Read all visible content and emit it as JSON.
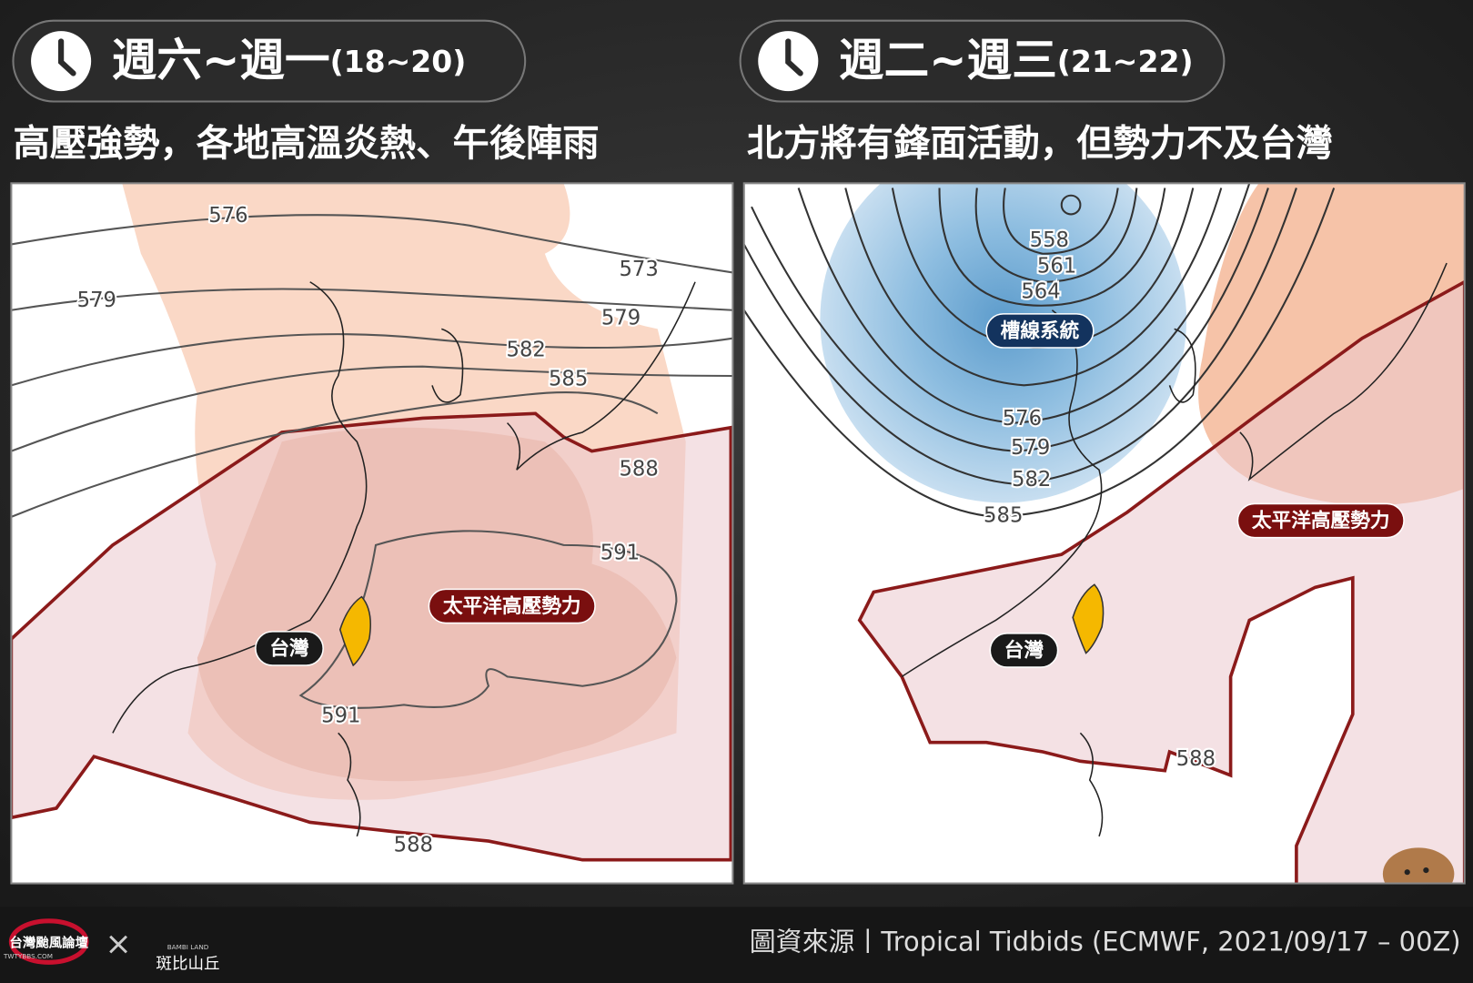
{
  "panels": [
    {
      "period": "週六~週一",
      "dates": "(18~20)",
      "headline": "高壓強勢，各地高溫炎熱、午後陣雨",
      "contour_labels": [
        "576",
        "573",
        "579",
        "579",
        "582",
        "585",
        "588",
        "591",
        "591",
        "588"
      ],
      "annotations": [
        "太平洋高壓勢力",
        "台灣"
      ]
    },
    {
      "period": "週二~週三",
      "dates": "(21~22)",
      "headline": "北方將有鋒面活動，但勢力不及台灣",
      "contour_labels": [
        "558",
        "561",
        "564",
        "576",
        "579",
        "582",
        "585",
        "588"
      ],
      "annotations": [
        "槽線系統",
        "太平洋高壓勢力",
        "台灣"
      ]
    }
  ],
  "footer": {
    "logo_left": "台灣颱風論壇",
    "logo_left_sub": "TWTYBBS.COM",
    "cross": "×",
    "logo_right": "斑比山丘",
    "logo_right_sub": "BAMBI LAND",
    "source_label": "圖資來源",
    "separator": "丨",
    "source": "Tropical Tidbids (ECMWF, 2021/09/17 – 00Z)"
  }
}
